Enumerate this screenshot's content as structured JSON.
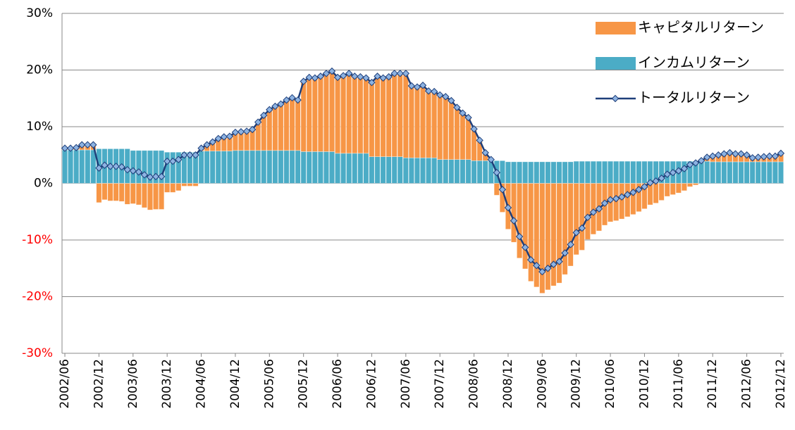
{
  "chart_data": {
    "type": "stacked_bar_line",
    "categories": [
      "2002/06",
      null,
      null,
      null,
      null,
      null,
      "2002/12",
      null,
      null,
      null,
      null,
      null,
      "2003/06",
      null,
      null,
      null,
      null,
      null,
      "2003/12",
      null,
      null,
      null,
      null,
      null,
      "2004/06",
      null,
      null,
      null,
      null,
      null,
      "2004/12",
      null,
      null,
      null,
      null,
      null,
      "2005/06",
      null,
      null,
      null,
      null,
      null,
      "2005/12",
      null,
      null,
      null,
      null,
      null,
      "2006/06",
      null,
      null,
      null,
      null,
      null,
      "2006/12",
      null,
      null,
      null,
      null,
      null,
      "2007/06",
      null,
      null,
      null,
      null,
      null,
      "2007/12",
      null,
      null,
      null,
      null,
      null,
      "2008/06",
      null,
      null,
      null,
      null,
      null,
      "2008/12",
      null,
      null,
      null,
      null,
      null,
      "2009/06",
      null,
      null,
      null,
      null,
      null,
      "2009/12",
      null,
      null,
      null,
      null,
      null,
      "2010/06",
      null,
      null,
      null,
      null,
      null,
      "2010/12",
      null,
      null,
      null,
      null,
      null,
      "2011/06",
      null,
      null,
      null,
      null,
      null,
      "2011/12",
      null,
      null,
      null,
      null,
      null,
      "2012/06",
      null,
      null,
      null,
      null,
      null,
      "2012/12"
    ],
    "series": [
      {
        "name": "キャピタルリターン",
        "color": "#f79646",
        "kind": "bar",
        "values": [
          0.3,
          0.3,
          0.4,
          0.9,
          0.9,
          0.9,
          -3.4,
          -2.9,
          -3.1,
          -3.1,
          -3.2,
          -3.7,
          -3.6,
          -3.8,
          -4.3,
          -4.7,
          -4.6,
          -4.6,
          -1.6,
          -1.6,
          -1.3,
          -0.5,
          -0.5,
          -0.5,
          0.5,
          1.1,
          1.6,
          2.2,
          2.5,
          2.6,
          3.2,
          3.3,
          3.4,
          3.7,
          5.0,
          6.2,
          7.2,
          7.8,
          8.2,
          8.9,
          9.3,
          8.9,
          12.4,
          13.1,
          13.0,
          13.3,
          13.8,
          14.2,
          13.4,
          13.7,
          14.1,
          13.6,
          13.5,
          13.3,
          13.1,
          14.2,
          13.9,
          14.1,
          14.7,
          14.7,
          14.9,
          12.7,
          12.5,
          12.8,
          11.8,
          11.7,
          11.4,
          11.1,
          10.4,
          9.2,
          8.2,
          7.4,
          5.6,
          3.6,
          1.4,
          0.2,
          -2.1,
          -5.1,
          -8.1,
          -10.4,
          -13.2,
          -15.1,
          -17.3,
          -18.3,
          -19.4,
          -18.8,
          -18.1,
          -17.6,
          -16.1,
          -14.6,
          -12.6,
          -11.8,
          -9.9,
          -9.0,
          -8.4,
          -7.4,
          -6.8,
          -6.6,
          -6.3,
          -5.9,
          -5.5,
          -5.0,
          -4.5,
          -3.8,
          -3.5,
          -3.0,
          -2.3,
          -2.0,
          -1.7,
          -1.3,
          -0.6,
          -0.3,
          0.1,
          0.7,
          1.0,
          1.2,
          1.4,
          1.6,
          1.4,
          1.4,
          1.2,
          0.7,
          0.8,
          0.9,
          1.0,
          1.0,
          1.5
        ]
      },
      {
        "name": "インカムリターン",
        "color": "#4bacc6",
        "kind": "bar",
        "values": [
          5.9,
          5.9,
          5.9,
          5.9,
          5.9,
          5.9,
          6.1,
          6.1,
          6.1,
          6.1,
          6.1,
          6.1,
          5.8,
          5.8,
          5.8,
          5.8,
          5.8,
          5.8,
          5.5,
          5.5,
          5.5,
          5.5,
          5.5,
          5.5,
          5.7,
          5.7,
          5.7,
          5.7,
          5.7,
          5.7,
          5.8,
          5.8,
          5.8,
          5.8,
          5.8,
          5.8,
          5.8,
          5.8,
          5.8,
          5.8,
          5.8,
          5.8,
          5.6,
          5.6,
          5.6,
          5.6,
          5.6,
          5.6,
          5.3,
          5.3,
          5.3,
          5.3,
          5.3,
          5.3,
          4.7,
          4.7,
          4.7,
          4.7,
          4.7,
          4.7,
          4.5,
          4.5,
          4.5,
          4.5,
          4.5,
          4.5,
          4.2,
          4.2,
          4.2,
          4.2,
          4.2,
          4.2,
          4.0,
          4.0,
          4.0,
          4.0,
          4.0,
          4.0,
          3.8,
          3.8,
          3.8,
          3.8,
          3.8,
          3.8,
          3.8,
          3.8,
          3.8,
          3.8,
          3.8,
          3.8,
          3.9,
          3.9,
          3.9,
          3.9,
          3.9,
          3.9,
          3.9,
          3.9,
          3.9,
          3.9,
          3.9,
          3.9,
          3.9,
          3.9,
          3.9,
          3.9,
          3.9,
          3.9,
          3.9,
          3.9,
          3.9,
          3.9,
          3.9,
          3.9,
          3.8,
          3.8,
          3.8,
          3.8,
          3.8,
          3.8,
          3.8,
          3.8,
          3.8,
          3.8,
          3.8,
          3.8,
          3.8
        ]
      },
      {
        "name": "トータルリターン",
        "color": "#1f3f7a",
        "marker_color": "#8db3e2",
        "kind": "line",
        "values": [
          6.2,
          6.2,
          6.3,
          6.8,
          6.8,
          6.8,
          2.7,
          3.2,
          3.0,
          3.0,
          2.9,
          2.4,
          2.2,
          2.0,
          1.5,
          1.1,
          1.2,
          1.2,
          3.9,
          3.9,
          4.2,
          5.0,
          5.0,
          5.0,
          6.2,
          6.8,
          7.3,
          7.9,
          8.2,
          8.3,
          9.0,
          9.1,
          9.2,
          9.5,
          10.8,
          12.0,
          13.0,
          13.6,
          14.0,
          14.7,
          15.1,
          14.7,
          18.0,
          18.7,
          18.6,
          18.9,
          19.4,
          19.8,
          18.7,
          19.0,
          19.4,
          18.9,
          18.8,
          18.6,
          17.8,
          18.9,
          18.6,
          18.8,
          19.4,
          19.4,
          19.4,
          17.2,
          17.0,
          17.3,
          16.3,
          16.2,
          15.6,
          15.3,
          14.6,
          13.4,
          12.4,
          11.6,
          9.6,
          7.6,
          5.4,
          4.2,
          1.9,
          -1.1,
          -4.3,
          -6.6,
          -9.4,
          -11.3,
          -13.5,
          -14.5,
          -15.6,
          -15.0,
          -14.3,
          -13.8,
          -12.3,
          -10.8,
          -8.7,
          -7.9,
          -6.0,
          -5.1,
          -4.5,
          -3.5,
          -2.9,
          -2.7,
          -2.4,
          -2.0,
          -1.6,
          -1.1,
          -0.6,
          0.1,
          0.4,
          0.9,
          1.6,
          1.9,
          2.2,
          2.6,
          3.3,
          3.6,
          4.0,
          4.6,
          4.8,
          5.0,
          5.2,
          5.4,
          5.2,
          5.2,
          5.0,
          4.5,
          4.6,
          4.7,
          4.8,
          4.8,
          5.3
        ]
      }
    ],
    "ylim": [
      -30,
      30
    ],
    "yticks": [
      {
        "value": -30,
        "label": "-30%"
      },
      {
        "value": -20,
        "label": "-20%"
      },
      {
        "value": -10,
        "label": "-10%"
      },
      {
        "value": 0,
        "label": "0%"
      },
      {
        "value": 10,
        "label": "10%"
      },
      {
        "value": 20,
        "label": "20%"
      },
      {
        "value": 30,
        "label": "30%"
      }
    ],
    "negative_ytick_color": "#ff0000",
    "grid": true,
    "legend": "upper right"
  }
}
